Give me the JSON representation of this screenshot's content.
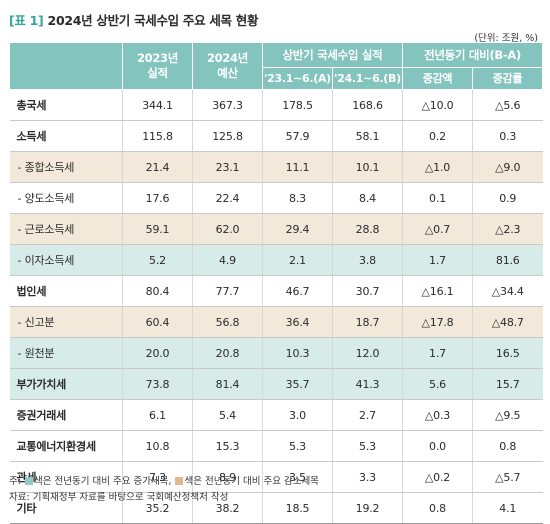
{
  "title": {
    "tag": "[표 1]",
    "text": "2024년 상반기 국세수입 주요 세목 현황"
  },
  "unit": "(단위: 조원, %)",
  "header": {
    "col1": [
      "2023년",
      "실적"
    ],
    "col2": [
      "2024년",
      "예산"
    ],
    "group_actual": "상반기 국세수입 실적",
    "group_change": "전년동기 대비(B-A)",
    "sub": [
      "'23.1~6.(A)",
      "'24.1~6.(B)",
      "증감액",
      "증감률"
    ]
  },
  "rows": [
    {
      "name": "총국세",
      "v": [
        "344.1",
        "367.3",
        "178.5",
        "168.6",
        "△10.0",
        "△5.6"
      ]
    },
    {
      "name": "소득세",
      "v": [
        "115.8",
        "125.8",
        "57.9",
        "58.1",
        "0.2",
        "0.3"
      ]
    },
    {
      "name": "- 종합소득세",
      "v": [
        "21.4",
        "23.1",
        "11.1",
        "10.1",
        "△1.0",
        "△9.0"
      ]
    },
    {
      "name": "- 양도소득세",
      "v": [
        "17.6",
        "22.4",
        "8.3",
        "8.4",
        "0.1",
        "0.9"
      ]
    },
    {
      "name": "- 근로소득세",
      "v": [
        "59.1",
        "62.0",
        "29.4",
        "28.8",
        "△0.7",
        "△2.3"
      ]
    },
    {
      "name": "- 이자소득세",
      "v": [
        "5.2",
        "4.9",
        "2.1",
        "3.8",
        "1.7",
        "81.6"
      ]
    },
    {
      "name": "법인세",
      "v": [
        "80.4",
        "77.7",
        "46.7",
        "30.7",
        "△16.1",
        "△34.4"
      ]
    },
    {
      "name": "- 신고분",
      "v": [
        "60.4",
        "56.8",
        "36.4",
        "18.7",
        "△17.8",
        "△48.7"
      ]
    },
    {
      "name": "- 원천분",
      "v": [
        "20.0",
        "20.8",
        "10.3",
        "12.0",
        "1.7",
        "16.5"
      ]
    },
    {
      "name": "부가가치세",
      "v": [
        "73.8",
        "81.4",
        "35.7",
        "41.3",
        "5.6",
        "15.7"
      ]
    },
    {
      "name": "증권거래세",
      "v": [
        "6.1",
        "5.4",
        "3.0",
        "2.7",
        "△0.3",
        "△9.5"
      ]
    },
    {
      "name": "교통에너지환경세",
      "v": [
        "10.8",
        "15.3",
        "5.3",
        "5.3",
        "0.0",
        "0.8"
      ]
    },
    {
      "name": "관세",
      "v": [
        "7.3",
        "8.9",
        "3.5",
        "3.3",
        "△0.2",
        "△5.7"
      ]
    },
    {
      "name": "기타",
      "v": [
        "35.2",
        "38.2",
        "18.5",
        "19.2",
        "0.8",
        "4.1"
      ]
    }
  ],
  "footnote": {
    "prefix": "주:",
    "green_text": "색은 전년동기 대비 주요 증가세목,",
    "tan_text": "색은 전년동기 대비 주요 감소세목",
    "source": "자료: 기획재정부 자료를 바탕으로 국회예산정책처 작성"
  },
  "colors": {
    "header": "#83c5be",
    "increase_row": "#d7ece8",
    "decrease_row": "#f3e9db",
    "title_tag": "#3aa39a"
  }
}
